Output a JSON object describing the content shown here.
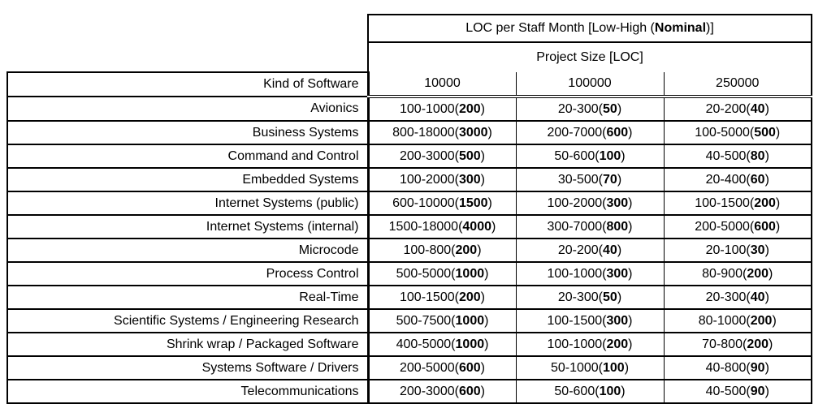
{
  "table": {
    "title": {
      "prefix": "LOC per Staff Month [Low-High (",
      "bold": "Nominal",
      "suffix": ")]"
    },
    "subtitle": "Project Size [LOC]",
    "kind_header": "Kind of Software",
    "size_headers": [
      "10000",
      "100000",
      "250000"
    ],
    "rows": [
      {
        "kind": "Avionics",
        "values": [
          {
            "range": "100-1000",
            "nominal": "200"
          },
          {
            "range": "20-300",
            "nominal": "50"
          },
          {
            "range": "20-200",
            "nominal": "40"
          }
        ]
      },
      {
        "kind": "Business Systems",
        "values": [
          {
            "range": "800-18000",
            "nominal": "3000"
          },
          {
            "range": "200-7000",
            "nominal": "600"
          },
          {
            "range": "100-5000",
            "nominal": "500"
          }
        ]
      },
      {
        "kind": "Command and Control",
        "values": [
          {
            "range": "200-3000",
            "nominal": "500"
          },
          {
            "range": "50-600",
            "nominal": "100"
          },
          {
            "range": "40-500",
            "nominal": "80"
          }
        ]
      },
      {
        "kind": "Embedded Systems",
        "values": [
          {
            "range": "100-2000",
            "nominal": "300"
          },
          {
            "range": "30-500",
            "nominal": "70"
          },
          {
            "range": "20-400",
            "nominal": "60"
          }
        ]
      },
      {
        "kind": "Internet Systems (public)",
        "values": [
          {
            "range": "600-10000",
            "nominal": "1500"
          },
          {
            "range": "100-2000",
            "nominal": "300"
          },
          {
            "range": "100-1500",
            "nominal": "200"
          }
        ]
      },
      {
        "kind": "Internet Systems (internal)",
        "values": [
          {
            "range": "1500-18000",
            "nominal": "4000"
          },
          {
            "range": "300-7000",
            "nominal": "800"
          },
          {
            "range": "200-5000",
            "nominal": "600"
          }
        ]
      },
      {
        "kind": "Microcode",
        "values": [
          {
            "range": "100-800",
            "nominal": "200"
          },
          {
            "range": "20-200",
            "nominal": "40"
          },
          {
            "range": "20-100",
            "nominal": "30"
          }
        ]
      },
      {
        "kind": "Process Control",
        "values": [
          {
            "range": "500-5000",
            "nominal": "1000"
          },
          {
            "range": "100-1000",
            "nominal": "300"
          },
          {
            "range": "80-900",
            "nominal": "200"
          }
        ]
      },
      {
        "kind": "Real-Time",
        "values": [
          {
            "range": "100-1500",
            "nominal": "200"
          },
          {
            "range": "20-300",
            "nominal": "50"
          },
          {
            "range": "20-300",
            "nominal": "40"
          }
        ]
      },
      {
        "kind": "Scientific Systems / Engineering Research",
        "values": [
          {
            "range": "500-7500",
            "nominal": "1000"
          },
          {
            "range": "100-1500",
            "nominal": "300"
          },
          {
            "range": "80-1000",
            "nominal": "200"
          }
        ]
      },
      {
        "kind": "Shrink wrap / Packaged Software",
        "values": [
          {
            "range": "400-5000",
            "nominal": "1000"
          },
          {
            "range": "100-1000",
            "nominal": "200"
          },
          {
            "range": "70-800",
            "nominal": "200"
          }
        ]
      },
      {
        "kind": "Systems Software / Drivers",
        "values": [
          {
            "range": "200-5000",
            "nominal": "600"
          },
          {
            "range": "50-1000",
            "nominal": "100"
          },
          {
            "range": "40-800",
            "nominal": "90"
          }
        ]
      },
      {
        "kind": "Telecommunications",
        "values": [
          {
            "range": "200-3000",
            "nominal": "600"
          },
          {
            "range": "50-600",
            "nominal": "100"
          },
          {
            "range": "40-500",
            "nominal": "90"
          }
        ]
      }
    ],
    "colors": {
      "border": "#000000",
      "text": "#000000",
      "background": "#ffffff"
    }
  }
}
